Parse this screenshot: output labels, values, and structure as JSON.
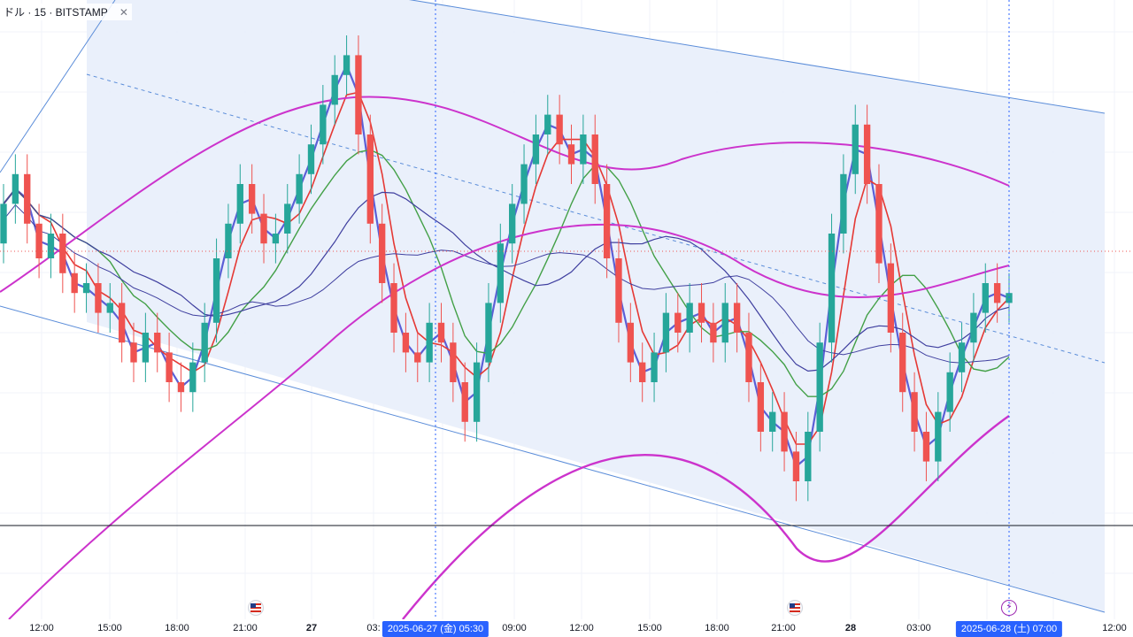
{
  "header": {
    "symbol_text": "ドル · 15 · BITSTAMP",
    "close_glyph": "✕"
  },
  "time_axis": {
    "ticks": [
      {
        "label": "12:00",
        "bold": false
      },
      {
        "label": "15:00",
        "bold": false
      },
      {
        "label": "18:00",
        "bold": false
      },
      {
        "label": "21:00",
        "bold": false
      },
      {
        "label": "27",
        "bold": true
      },
      {
        "label": "03:",
        "bold": false
      },
      {
        "label": "09:00",
        "bold": false
      },
      {
        "label": "12:00",
        "bold": false
      },
      {
        "label": "15:00",
        "bold": false
      },
      {
        "label": "18:00",
        "bold": false
      },
      {
        "label": "21:00",
        "bold": false
      },
      {
        "label": "28",
        "bold": true
      },
      {
        "label": "03:00",
        "bold": false
      },
      {
        "label": "12:00",
        "bold": false
      }
    ],
    "crosshair_labels": [
      {
        "label": "2025-06-27 (金)   05:30"
      },
      {
        "label": "2025-06-28 (土)   07:00"
      }
    ],
    "events": [
      {
        "icon": "us-flag-icon"
      },
      {
        "icon": "us-flag-icon"
      },
      {
        "icon": "lightning-icon"
      }
    ]
  },
  "colors": {
    "up": "#26a69a",
    "down": "#ef5350",
    "channel_fill": "#e8eefb",
    "channel_line": "#5b8dd9",
    "ma_blue": "#5b5fd6",
    "ma_red": "#e53935",
    "ma_green": "#43a047",
    "ma_navy": "#3f3f9f",
    "ma_magenta": "#cc33cc",
    "crosshair": "#2962ff",
    "hline": "#131722"
  },
  "chart_data": {
    "type": "candlestick",
    "symbol": "BITSTAMP",
    "timeframe": "15",
    "x_axis": "time",
    "notes_visible": [
      "descending parallel channel with dashed midline",
      "moving-average overlays",
      "horizontal line",
      "two vertical crosshair lines"
    ],
    "candles": [
      {
        "o": 0.58,
        "c": 0.66
      },
      {
        "o": 0.66,
        "c": 0.72
      },
      {
        "o": 0.72,
        "c": 0.62
      },
      {
        "o": 0.62,
        "c": 0.55
      },
      {
        "o": 0.55,
        "c": 0.6
      },
      {
        "o": 0.6,
        "c": 0.52
      },
      {
        "o": 0.52,
        "c": 0.48
      },
      {
        "o": 0.48,
        "c": 0.5
      },
      {
        "o": 0.5,
        "c": 0.44
      },
      {
        "o": 0.44,
        "c": 0.46
      },
      {
        "o": 0.46,
        "c": 0.38
      },
      {
        "o": 0.38,
        "c": 0.34
      },
      {
        "o": 0.34,
        "c": 0.4
      },
      {
        "o": 0.4,
        "c": 0.36
      },
      {
        "o": 0.36,
        "c": 0.3
      },
      {
        "o": 0.3,
        "c": 0.28
      },
      {
        "o": 0.28,
        "c": 0.34
      },
      {
        "o": 0.34,
        "c": 0.42
      },
      {
        "o": 0.42,
        "c": 0.55
      },
      {
        "o": 0.55,
        "c": 0.62
      },
      {
        "o": 0.62,
        "c": 0.7
      },
      {
        "o": 0.7,
        "c": 0.64
      },
      {
        "o": 0.64,
        "c": 0.58
      },
      {
        "o": 0.58,
        "c": 0.6
      },
      {
        "o": 0.6,
        "c": 0.66
      },
      {
        "o": 0.66,
        "c": 0.72
      },
      {
        "o": 0.72,
        "c": 0.78
      },
      {
        "o": 0.78,
        "c": 0.86
      },
      {
        "o": 0.86,
        "c": 0.92
      },
      {
        "o": 0.92,
        "c": 0.96
      },
      {
        "o": 0.96,
        "c": 0.8
      },
      {
        "o": 0.8,
        "c": 0.62
      },
      {
        "o": 0.62,
        "c": 0.5
      },
      {
        "o": 0.5,
        "c": 0.4
      },
      {
        "o": 0.4,
        "c": 0.36
      },
      {
        "o": 0.36,
        "c": 0.34
      },
      {
        "o": 0.34,
        "c": 0.42
      },
      {
        "o": 0.42,
        "c": 0.38
      },
      {
        "o": 0.38,
        "c": 0.3
      },
      {
        "o": 0.3,
        "c": 0.22
      },
      {
        "o": 0.22,
        "c": 0.34
      },
      {
        "o": 0.34,
        "c": 0.46
      },
      {
        "o": 0.46,
        "c": 0.58
      },
      {
        "o": 0.58,
        "c": 0.66
      },
      {
        "o": 0.66,
        "c": 0.74
      },
      {
        "o": 0.74,
        "c": 0.8
      },
      {
        "o": 0.8,
        "c": 0.84
      },
      {
        "o": 0.84,
        "c": 0.78
      },
      {
        "o": 0.78,
        "c": 0.74
      },
      {
        "o": 0.74,
        "c": 0.8
      },
      {
        "o": 0.8,
        "c": 0.7
      },
      {
        "o": 0.7,
        "c": 0.55
      },
      {
        "o": 0.55,
        "c": 0.42
      },
      {
        "o": 0.42,
        "c": 0.34
      },
      {
        "o": 0.34,
        "c": 0.3
      },
      {
        "o": 0.3,
        "c": 0.36
      },
      {
        "o": 0.36,
        "c": 0.44
      },
      {
        "o": 0.44,
        "c": 0.4
      },
      {
        "o": 0.4,
        "c": 0.46
      },
      {
        "o": 0.46,
        "c": 0.42
      },
      {
        "o": 0.42,
        "c": 0.38
      },
      {
        "o": 0.38,
        "c": 0.46
      },
      {
        "o": 0.46,
        "c": 0.4
      },
      {
        "o": 0.4,
        "c": 0.3
      },
      {
        "o": 0.3,
        "c": 0.2
      },
      {
        "o": 0.2,
        "c": 0.24
      },
      {
        "o": 0.24,
        "c": 0.16
      },
      {
        "o": 0.16,
        "c": 0.1
      },
      {
        "o": 0.1,
        "c": 0.2
      },
      {
        "o": 0.2,
        "c": 0.38
      },
      {
        "o": 0.38,
        "c": 0.6
      },
      {
        "o": 0.6,
        "c": 0.72
      },
      {
        "o": 0.72,
        "c": 0.82
      },
      {
        "o": 0.82,
        "c": 0.7
      },
      {
        "o": 0.7,
        "c": 0.54
      },
      {
        "o": 0.54,
        "c": 0.4
      },
      {
        "o": 0.4,
        "c": 0.28
      },
      {
        "o": 0.28,
        "c": 0.2
      },
      {
        "o": 0.2,
        "c": 0.14
      },
      {
        "o": 0.14,
        "c": 0.24
      },
      {
        "o": 0.24,
        "c": 0.32
      },
      {
        "o": 0.32,
        "c": 0.38
      },
      {
        "o": 0.38,
        "c": 0.44
      },
      {
        "o": 0.44,
        "c": 0.5
      },
      {
        "o": 0.5,
        "c": 0.46
      },
      {
        "o": 0.46,
        "c": 0.48
      }
    ]
  }
}
